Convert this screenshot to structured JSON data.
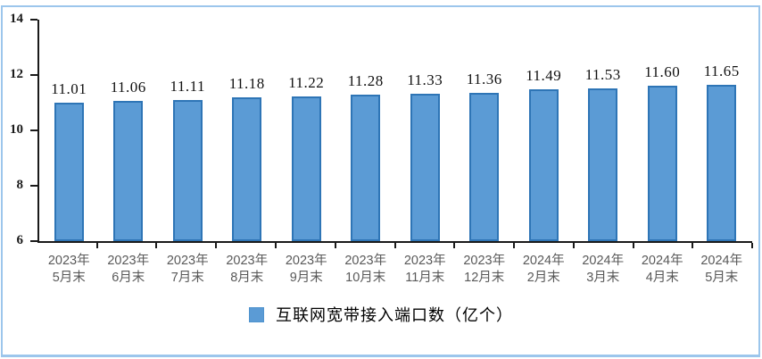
{
  "chart_data": {
    "type": "bar",
    "title": "",
    "legend": "互联网宽带接入端口数（亿个）",
    "legend_position": "bottom-center",
    "categories": [
      "2023年\n5月末",
      "2023年\n6月末",
      "2023年\n7月末",
      "2023年\n8月末",
      "2023年\n9月末",
      "2023年\n10月末",
      "2023年\n11月末",
      "2023年\n12月末",
      "2024年\n2月末",
      "2024年\n3月末",
      "2024年\n4月末",
      "2024年\n5月末"
    ],
    "values": [
      11.01,
      11.06,
      11.11,
      11.18,
      11.22,
      11.28,
      11.33,
      11.36,
      11.49,
      11.53,
      11.6,
      11.65
    ],
    "xlabel": "",
    "ylabel": "",
    "ylim": [
      6,
      14
    ],
    "yticks": [
      6,
      8,
      10,
      12,
      14
    ],
    "grid": false,
    "value_label_decimals": 2,
    "colors": {
      "bar_fill": "#5B9BD5",
      "bar_border": "#2E75B6",
      "frame_border": "#9CC6EC",
      "axis": "#1a1a1a",
      "x_label": "#595959",
      "value_label": "#111111"
    }
  }
}
